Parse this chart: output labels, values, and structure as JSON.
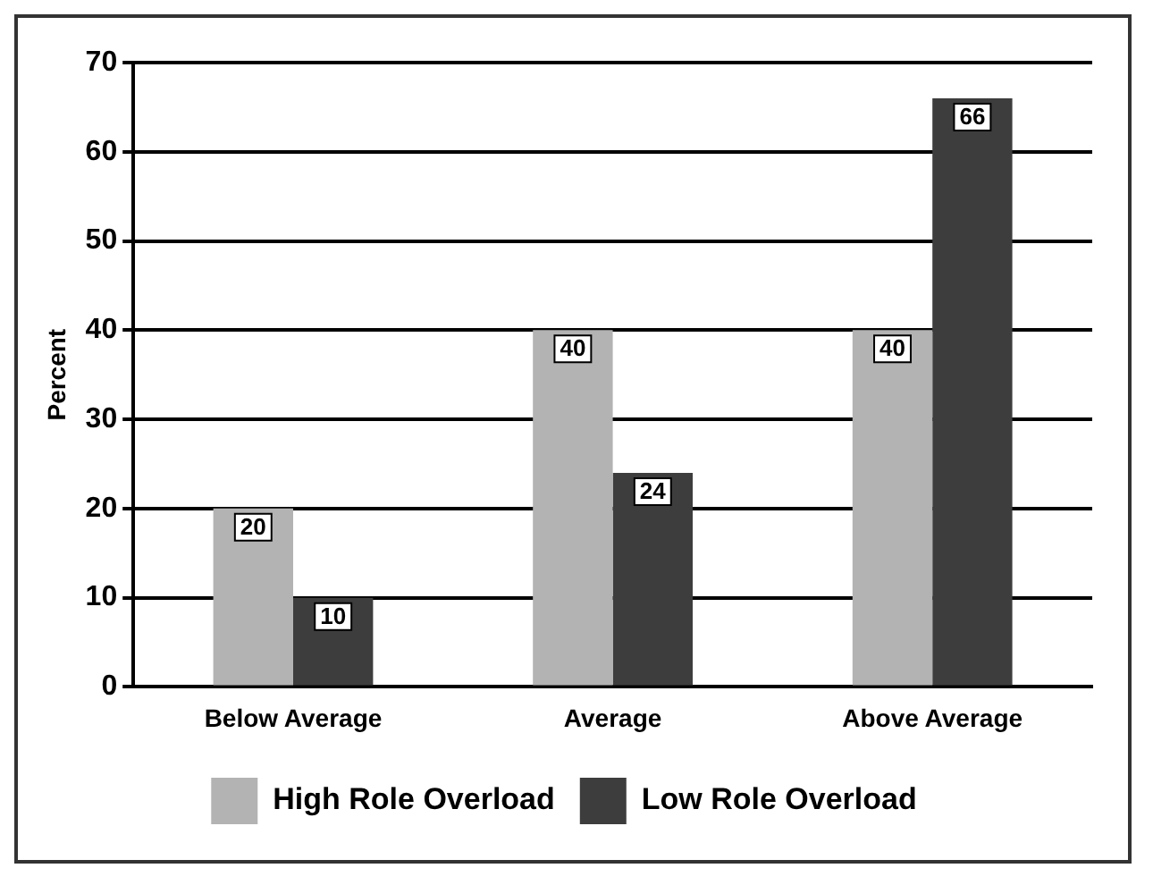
{
  "chart_data": {
    "type": "bar",
    "ylabel": "Percent",
    "categories": [
      "Below Average",
      "Average",
      "Above Average"
    ],
    "series": [
      {
        "name": "High Role Overload",
        "color": "#b3b3b3",
        "values": [
          20,
          40,
          40
        ]
      },
      {
        "name": "Low Role Overload",
        "color": "#3d3d3d",
        "values": [
          10,
          24,
          66
        ]
      }
    ],
    "ylim": [
      0,
      70
    ],
    "yticks": [
      0,
      10,
      20,
      30,
      40,
      50,
      60,
      70
    ],
    "grid": "y",
    "legend": "bottom",
    "data_labels": true
  }
}
